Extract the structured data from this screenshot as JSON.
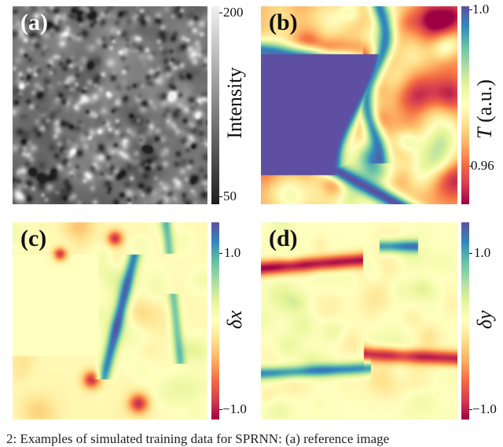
{
  "chart_data": [
    {
      "type": "heatmap",
      "panel_label": "(a)",
      "colormap": "gray",
      "colorbar": {
        "label": "Intensity",
        "ticks": [
          "200",
          "50"
        ],
        "range": [
          40,
          210
        ]
      }
    },
    {
      "type": "heatmap",
      "panel_label": "(b)",
      "colormap": "Spectral",
      "colorbar": {
        "label_symbol": "T",
        "label_unit": " (a.u.)",
        "ticks": [
          "1.0",
          "0.96"
        ],
        "range": [
          0.95,
          1.0
        ]
      }
    },
    {
      "type": "heatmap",
      "panel_label": "(c)",
      "colormap": "Spectral",
      "colorbar": {
        "label": "δx",
        "ticks": [
          "1.0",
          "−1.0"
        ],
        "range": [
          -1.2,
          1.2
        ]
      }
    },
    {
      "type": "heatmap",
      "panel_label": "(d)",
      "colormap": "Spectral",
      "colorbar": {
        "label": "δy",
        "ticks": [
          "1.0",
          "−1.0"
        ],
        "range": [
          -1.2,
          1.2
        ]
      }
    }
  ],
  "caption": "2: Examples of simulated training data for SPRNN: (a) reference image"
}
